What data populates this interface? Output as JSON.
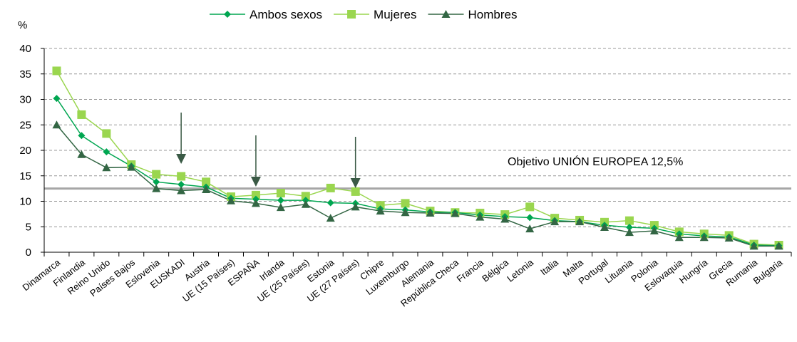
{
  "chart_data": {
    "type": "line",
    "ylabel": "%",
    "ylim": [
      0,
      40
    ],
    "yticks": [
      "0",
      "5",
      "10",
      "15",
      "20",
      "25",
      "30",
      "35",
      "40"
    ],
    "grid": true,
    "legend_position": "top",
    "categories": [
      "Dinamarca",
      "Finlandia",
      "Reino Unido",
      "Países Bajos",
      "Eslovenia",
      "EUSKADI",
      "Austria",
      "UE (15 Países)",
      "ESPAÑA",
      "Irlanda",
      "UE (25 Países)",
      "Estonia",
      "UE (27 Países)",
      "Chipre",
      "Luxemburgo",
      "Alemania",
      "República Checa",
      "Francia",
      "Bélgica",
      "Letonia",
      "Italia",
      "Malta",
      "Portugal",
      "Lituania",
      "Polonia",
      "Eslovaquia",
      "Hungría",
      "Grecia",
      "Rumania",
      "Bulgaria"
    ],
    "series": [
      {
        "name": "Ambos sexos",
        "color": "#00a651",
        "marker": "diamond",
        "values": [
          30.2,
          22.9,
          19.7,
          16.9,
          13.8,
          13.3,
          12.8,
          10.6,
          10.4,
          10.2,
          10.2,
          9.7,
          9.6,
          8.5,
          8.3,
          7.9,
          7.8,
          7.3,
          7.0,
          6.8,
          6.2,
          6.0,
          5.3,
          4.9,
          4.7,
          3.6,
          3.2,
          3.0,
          1.4,
          1.3
        ]
      },
      {
        "name": "Mujeres",
        "color": "#9ad64f",
        "marker": "square",
        "values": [
          35.6,
          27.0,
          23.3,
          17.2,
          15.3,
          14.9,
          13.8,
          10.9,
          11.2,
          11.6,
          11.0,
          12.6,
          11.9,
          9.2,
          9.6,
          8.1,
          7.8,
          7.7,
          7.4,
          8.9,
          6.7,
          6.3,
          5.9,
          6.2,
          5.3,
          4.0,
          3.6,
          3.3,
          1.6,
          1.4
        ]
      },
      {
        "name": "Hombres",
        "color": "#336644",
        "marker": "triangle",
        "values": [
          25.0,
          19.2,
          16.6,
          16.7,
          12.5,
          12.1,
          12.3,
          10.1,
          9.6,
          8.8,
          9.4,
          6.7,
          8.9,
          8.1,
          7.8,
          7.7,
          7.6,
          6.9,
          6.5,
          4.6,
          6.0,
          6.0,
          4.9,
          3.9,
          4.2,
          2.9,
          2.9,
          2.8,
          1.2,
          1.2
        ]
      }
    ],
    "target_line": {
      "value": 12.5,
      "color": "#a6a6a6",
      "label": "Objetivo UNIÓN EUROPEA 12,5%"
    },
    "arrows": [
      {
        "category": "EUSKADI"
      },
      {
        "category": "ESPAÑA"
      },
      {
        "category": "UE (27 Países)"
      }
    ]
  }
}
